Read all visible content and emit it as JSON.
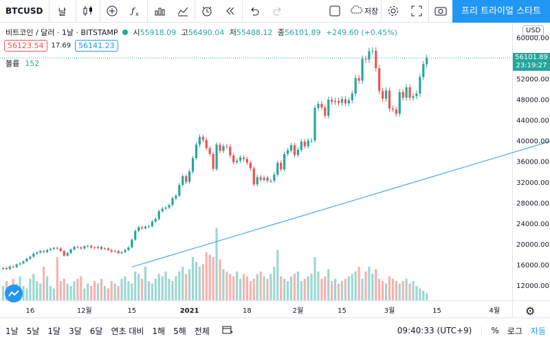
{
  "toolbar": {
    "symbol": "BTCUSD",
    "interval": "날",
    "save_label": "저장",
    "trial_button": "프리 트라이얼 스타트",
    "icons": [
      "candles-icon",
      "add-indicator-icon",
      "fx-icon",
      "bar-chart-icon",
      "line-chart-icon",
      "alarm-icon",
      "rewind-icon",
      "undo-icon",
      "redo-icon",
      "layout-icon",
      "cloud-icon",
      "settings-icon",
      "fullscreen-icon",
      "camera-icon"
    ]
  },
  "legend": {
    "title": "비트코인 / 달러 · 1날 · BITSTAMP",
    "open_label": "시",
    "open": "55918.09",
    "high_label": "고",
    "high": "56490.04",
    "low_label": "저",
    "low": "55488.12",
    "close_label": "종",
    "close": "56101.89",
    "change": "+249.60 (+0.45%)"
  },
  "bid": "56123.54",
  "spread": "17.69",
  "ask": "56141.23",
  "volume": {
    "label": "볼륨",
    "value": "152"
  },
  "currency_badge": "USD",
  "current_price": {
    "value": "56101.89",
    "countdown": "23:19:27"
  },
  "bottom": {
    "ranges": [
      "1날",
      "5날",
      "1달",
      "3달",
      "6달",
      "연초 대비",
      "1해",
      "5해",
      "전체"
    ],
    "time": "09:40:33 (UTC+9)",
    "percent": "%",
    "log": "로그",
    "auto": "자동"
  },
  "colors": {
    "up": "#26a69a",
    "down": "#ef5350",
    "accent": "#2196f3",
    "trend": "#2196f3"
  },
  "chart_data": {
    "type": "candlestick",
    "title": "비트코인 / 달러 · 1날 · BITSTAMP",
    "y_ticks": [
      12000,
      16000,
      20000,
      24000,
      28000,
      32000,
      36000,
      40000,
      44000,
      48000,
      52000,
      56000,
      60000
    ],
    "ylim": [
      9000,
      62000
    ],
    "x_tick_labels": [
      {
        "label": "16",
        "index": 8
      },
      {
        "label": "12월",
        "index": 24
      },
      {
        "label": "15",
        "index": 38
      },
      {
        "label": "2021",
        "index": 55
      },
      {
        "label": "18",
        "index": 72
      },
      {
        "label": "2월",
        "index": 87
      },
      {
        "label": "15",
        "index": 100
      },
      {
        "label": "3월",
        "index": 114
      },
      {
        "label": "15",
        "index": 128
      },
      {
        "label": "4월",
        "index": 145
      }
    ],
    "close": [
      15400,
      15200,
      15700,
      15600,
      16100,
      16300,
      16700,
      17200,
      17600,
      18200,
      18400,
      18700,
      18500,
      18900,
      19100,
      19300,
      19200,
      18700,
      17800,
      18300,
      19000,
      19500,
      19400,
      19200,
      19600,
      19700,
      19400,
      19300,
      19500,
      19100,
      19200,
      18900,
      18600,
      18700,
      18300,
      18500,
      18900,
      19400,
      20900,
      22600,
      23300,
      23100,
      23400,
      23500,
      24400,
      24900,
      26400,
      26900,
      27100,
      27600,
      28900,
      29400,
      31500,
      33200,
      32100,
      34100,
      36700,
      39300,
      40800,
      40200,
      38600,
      37500,
      34600,
      39300,
      38100,
      39000,
      38900,
      37200,
      35900,
      36200,
      36800,
      36500,
      35800,
      34700,
      31600,
      33000,
      32500,
      32900,
      32300,
      32300,
      33500,
      35800,
      34500,
      37500,
      38200,
      39200,
      37300,
      38300,
      39900,
      39000,
      40100,
      40100,
      46400,
      47200,
      46500,
      44900,
      48000,
      47600,
      47800,
      47400,
      48100,
      47300,
      47900,
      49200,
      52200,
      51700,
      55900,
      55800,
      57400,
      57500,
      54100,
      49700,
      48200,
      49800,
      46300,
      46100,
      45300,
      49500,
      48400,
      50400,
      48400,
      48700,
      49200,
      52400,
      54900,
      56101
    ],
    "open_prev_close": true,
    "volume": [
      6,
      8,
      5,
      9,
      7,
      10,
      6,
      5,
      9,
      11,
      8,
      7,
      14,
      10,
      6,
      5,
      18,
      8,
      9,
      7,
      6,
      8,
      9,
      10,
      5,
      7,
      6,
      8,
      7,
      9,
      6,
      5,
      8,
      7,
      6,
      9,
      10,
      8,
      7,
      12,
      11,
      9,
      14,
      8,
      7,
      9,
      11,
      10,
      12,
      9,
      8,
      10,
      12,
      14,
      11,
      13,
      18,
      16,
      14,
      15,
      20,
      19,
      18,
      30,
      17,
      13,
      12,
      11,
      10,
      12,
      9,
      11,
      10,
      8,
      9,
      11,
      12,
      10,
      9,
      11,
      14,
      21,
      10,
      9,
      8,
      10,
      11,
      12,
      8,
      9,
      10,
      11,
      18,
      12,
      9,
      10,
      13,
      8,
      9,
      7,
      8,
      9,
      10,
      11,
      12,
      14,
      9,
      12,
      14,
      11,
      13,
      9,
      8,
      7,
      10,
      9,
      8,
      7,
      8,
      9,
      7,
      8,
      6,
      5,
      4,
      3
    ],
    "trendline": [
      {
        "index": 38,
        "price": 15600
      },
      {
        "index": 187,
        "price": 45000
      }
    ]
  }
}
